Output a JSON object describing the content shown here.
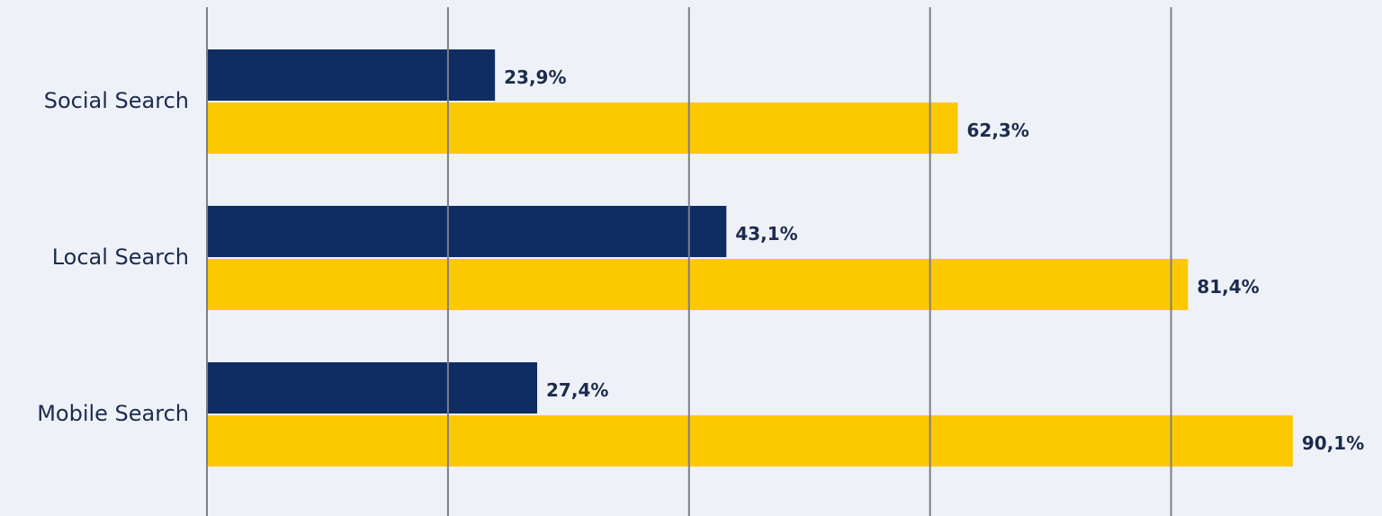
{
  "chart_data": {
    "type": "bar",
    "orientation": "horizontal",
    "categories": [
      "Social Search",
      "Local Search",
      "Mobile Search"
    ],
    "series": [
      {
        "color": "#0f2d63",
        "values": [
          23.9,
          43.1,
          27.4
        ],
        "value_labels": [
          "23,9%",
          "43,1%",
          "27,4%"
        ]
      },
      {
        "color": "#fcc800",
        "values": [
          62.3,
          81.4,
          90.1
        ],
        "value_labels": [
          "62,3%",
          "81,4%",
          "90,1%"
        ]
      }
    ],
    "xlim": [
      0,
      97.5
    ],
    "xticks": [
      0,
      20,
      40,
      60,
      80
    ],
    "grid": true
  }
}
